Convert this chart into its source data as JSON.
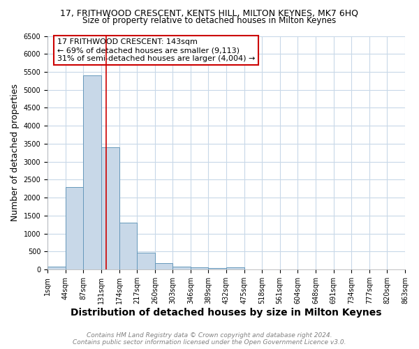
{
  "title": "17, FRITHWOOD CRESCENT, KENTS HILL, MILTON KEYNES, MK7 6HQ",
  "subtitle": "Size of property relative to detached houses in Milton Keynes",
  "xlabel": "Distribution of detached houses by size in Milton Keynes",
  "ylabel": "Number of detached properties",
  "bin_edges": [
    1,
    44,
    87,
    131,
    174,
    217,
    260,
    303,
    346,
    389,
    432,
    475,
    518,
    561,
    604,
    648,
    691,
    734,
    777,
    820,
    863
  ],
  "bar_heights": [
    75,
    2300,
    5400,
    3400,
    1300,
    475,
    185,
    90,
    60,
    35,
    60,
    0,
    0,
    0,
    0,
    0,
    0,
    0,
    0,
    0
  ],
  "bar_color": "#c8d8e8",
  "bar_edge_color": "#6699bb",
  "grid_color": "#c8d8e8",
  "background_color": "#ffffff",
  "vline_x": 143,
  "vline_color": "#cc0000",
  "annotation_text": "17 FRITHWOOD CRESCENT: 143sqm\n← 69% of detached houses are smaller (9,113)\n31% of semi-detached houses are larger (4,004) →",
  "annotation_box_color": "#cc0000",
  "ylim": [
    0,
    6500
  ],
  "yticks": [
    0,
    500,
    1000,
    1500,
    2000,
    2500,
    3000,
    3500,
    4000,
    4500,
    5000,
    5500,
    6000,
    6500
  ],
  "xlabel_tick_labels": [
    "1sqm",
    "44sqm",
    "87sqm",
    "131sqm",
    "174sqm",
    "217sqm",
    "260sqm",
    "303sqm",
    "346sqm",
    "389sqm",
    "432sqm",
    "475sqm",
    "518sqm",
    "561sqm",
    "604sqm",
    "648sqm",
    "691sqm",
    "734sqm",
    "777sqm",
    "820sqm",
    "863sqm"
  ],
  "footer_line1": "Contains HM Land Registry data © Crown copyright and database right 2024.",
  "footer_line2": "Contains public sector information licensed under the Open Government Licence v3.0.",
  "title_fontsize": 9,
  "subtitle_fontsize": 8.5,
  "axis_label_fontsize": 9,
  "tick_fontsize": 7,
  "annotation_fontsize": 8,
  "footer_fontsize": 6.5
}
